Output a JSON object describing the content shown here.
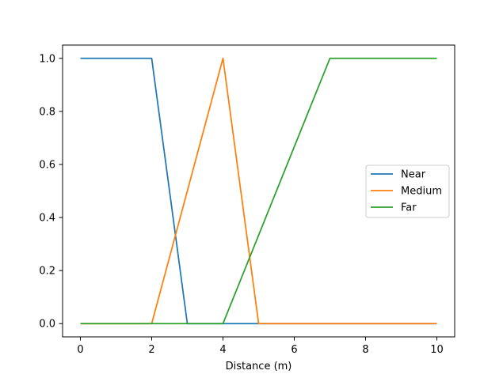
{
  "chart_data": {
    "type": "line",
    "title": "",
    "xlabel": "Distance (m)",
    "ylabel": "",
    "xlim": [
      -0.5,
      10.5
    ],
    "ylim": [
      -0.05,
      1.05
    ],
    "xticks": [
      0,
      2,
      4,
      6,
      8,
      10
    ],
    "yticks": [
      0.0,
      0.2,
      0.4,
      0.6,
      0.8,
      1.0
    ],
    "xtick_labels": [
      "0",
      "2",
      "4",
      "6",
      "8",
      "10"
    ],
    "ytick_labels": [
      "0.0",
      "0.2",
      "0.4",
      "0.6",
      "0.8",
      "1.0"
    ],
    "grid": false,
    "legend_position": "center-right",
    "series": [
      {
        "name": "Near",
        "color": "#1f77b4",
        "x": [
          0,
          2,
          3,
          10
        ],
        "y": [
          1,
          1,
          0,
          0
        ]
      },
      {
        "name": "Medium",
        "color": "#ff7f0e",
        "x": [
          0,
          2,
          4,
          5,
          10
        ],
        "y": [
          0,
          0,
          1,
          0,
          0
        ]
      },
      {
        "name": "Far",
        "color": "#2ca02c",
        "x": [
          0,
          4,
          7,
          10
        ],
        "y": [
          0,
          0,
          1,
          1
        ]
      }
    ]
  }
}
